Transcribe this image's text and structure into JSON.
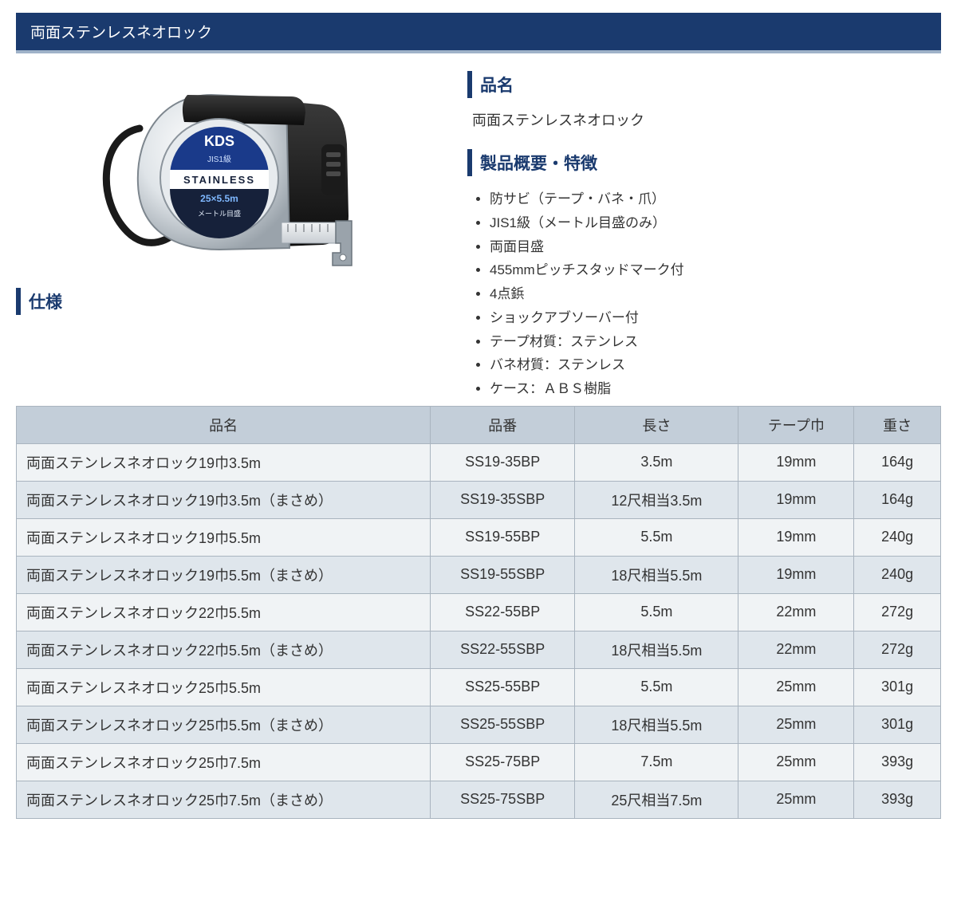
{
  "colors": {
    "accent": "#1a3a6e",
    "title_border": "#9fb2c8",
    "th_bg": "#c3ced9",
    "row_odd": "#f0f3f5",
    "row_even": "#dfe6ec",
    "border": "#a9b4bf",
    "text": "#333333"
  },
  "header": {
    "title": "両面ステンレスネオロック"
  },
  "sections": {
    "name_label": "品名",
    "name_value": "両面ステンレスネオロック",
    "overview_label": "製品概要・特徴",
    "spec_label": "仕様"
  },
  "features": [
    "防サビ（テープ・バネ・爪）",
    "JIS1級（メートル目盛のみ）",
    "両面目盛",
    "455mmピッチスタッドマーク付",
    "4点鋲",
    "ショックアブソーバー付",
    "テープ材質：ステンレス",
    "バネ材質：ステンレス",
    "ケース：ＡＢＳ樹脂"
  ],
  "spec_table": {
    "columns": [
      "品名",
      "品番",
      "長さ",
      "テープ巾",
      "重さ"
    ],
    "column_widths_pct": [
      43,
      15,
      17,
      12,
      9
    ],
    "rows": [
      [
        "両面ステンレスネオロック19巾3.5m",
        "SS19-35BP",
        "3.5m",
        "19mm",
        "164g"
      ],
      [
        "両面ステンレスネオロック19巾3.5m（まさめ）",
        "SS19-35SBP",
        "12尺相当3.5m",
        "19mm",
        "164g"
      ],
      [
        "両面ステンレスネオロック19巾5.5m",
        "SS19-55BP",
        "5.5m",
        "19mm",
        "240g"
      ],
      [
        "両面ステンレスネオロック19巾5.5m（まさめ）",
        "SS19-55SBP",
        "18尺相当5.5m",
        "19mm",
        "240g"
      ],
      [
        "両面ステンレスネオロック22巾5.5m",
        "SS22-55BP",
        "5.5m",
        "22mm",
        "272g"
      ],
      [
        "両面ステンレスネオロック22巾5.5m（まさめ）",
        "SS22-55SBP",
        "18尺相当5.5m",
        "22mm",
        "272g"
      ],
      [
        "両面ステンレスネオロック25巾5.5m",
        "SS25-55BP",
        "5.5m",
        "25mm",
        "301g"
      ],
      [
        "両面ステンレスネオロック25巾5.5m（まさめ）",
        "SS25-55SBP",
        "18尺相当5.5m",
        "25mm",
        "301g"
      ],
      [
        "両面ステンレスネオロック25巾7.5m",
        "SS25-75BP",
        "7.5m",
        "25mm",
        "393g"
      ],
      [
        "両面ステンレスネオロック25巾7.5m（まさめ）",
        "SS25-75SBP",
        "25尺相当7.5m",
        "25mm",
        "393g"
      ]
    ]
  },
  "product_image": {
    "brand": "KDS",
    "badge": "JIS1級",
    "label_main": "STAINLESS",
    "spec_text": "25㎜×5.5m",
    "sub_text": "メートル目盛"
  }
}
